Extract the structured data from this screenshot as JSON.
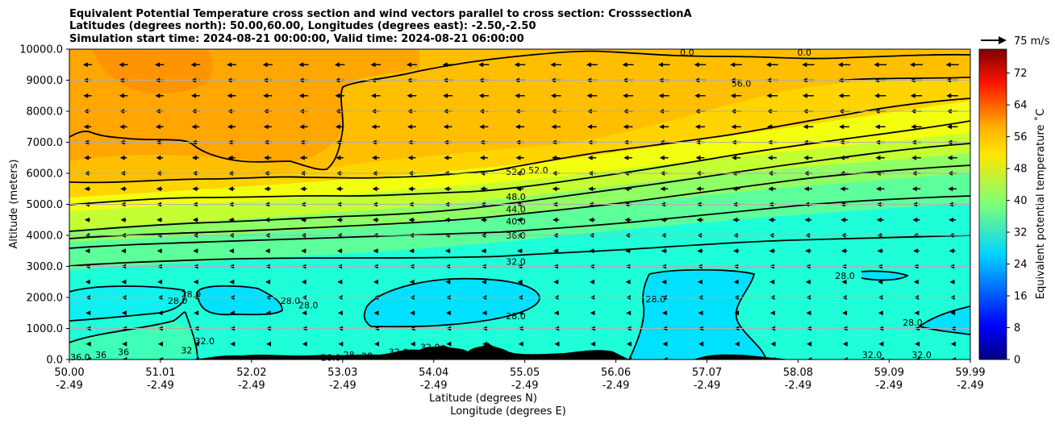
{
  "chart_data": {
    "type": "heatmap",
    "title_lines": [
      "Equivalent Potential Temperature cross section and wind vectors parallel to cross section: CrosssectionA",
      "Latitudes (degrees north): 50.00,60.00, Longitudes (degrees east): -2.50,-2.50",
      "Simulation start time: 2024-08-21 00:00:00, Valid time: 2024-08-21 06:00:00"
    ],
    "xlabel_lines": [
      "Latitude (degrees N)",
      "Longitude (degrees E)"
    ],
    "ylabel": "Altitude (meters)",
    "x_ticks": [
      {
        "lat": "50.00",
        "lon": "-2.49"
      },
      {
        "lat": "51.01",
        "lon": "-2.49"
      },
      {
        "lat": "52.02",
        "lon": "-2.49"
      },
      {
        "lat": "53.03",
        "lon": "-2.49"
      },
      {
        "lat": "54.04",
        "lon": "-2.49"
      },
      {
        "lat": "55.05",
        "lon": "-2.49"
      },
      {
        "lat": "56.06",
        "lon": "-2.49"
      },
      {
        "lat": "57.07",
        "lon": "-2.49"
      },
      {
        "lat": "58.08",
        "lon": "-2.49"
      },
      {
        "lat": "59.09",
        "lon": "-2.49"
      },
      {
        "lat": "59.99",
        "lon": "-2.49"
      }
    ],
    "xlim": [
      50.0,
      59.99
    ],
    "y_ticks": [
      "0.0",
      "1000.0",
      "2000.0",
      "3000.0",
      "4000.0",
      "5000.0",
      "6000.0",
      "7000.0",
      "8000.0",
      "9000.0",
      "10000.0"
    ],
    "ylim": [
      0,
      10000
    ],
    "grid": "horizontal",
    "colorbar": {
      "label": "Equivalent potential temperature ˚C",
      "ticks": [
        "0",
        "8",
        "16",
        "24",
        "32",
        "40",
        "48",
        "56",
        "64",
        "72"
      ],
      "range": [
        0,
        78
      ],
      "colormap": "jet"
    },
    "quiver_key": "75 m/s",
    "wind_direction": "southward (toward 50.00 N)",
    "contour_levels": [
      28,
      32,
      36,
      40,
      44,
      48,
      52,
      56
    ],
    "contour_labels": [
      {
        "text": "52.0",
        "lat": 54.95,
        "alt": 6050
      },
      {
        "text": "52.0",
        "lat": 55.2,
        "alt": 6100
      },
      {
        "text": "48.0",
        "lat": 54.95,
        "alt": 5250
      },
      {
        "text": "44.0",
        "lat": 54.95,
        "alt": 4850
      },
      {
        "text": "40.0",
        "lat": 54.95,
        "alt": 4450
      },
      {
        "text": "36.0",
        "lat": 54.95,
        "alt": 4000
      },
      {
        "text": "32.0",
        "lat": 54.95,
        "alt": 3150
      },
      {
        "text": "28.0",
        "lat": 54.95,
        "alt": 1400
      },
      {
        "text": "56.0",
        "lat": 57.45,
        "alt": 8900
      },
      {
        "text": "28.0",
        "lat": 51.2,
        "alt": 1900
      },
      {
        "text": "28.0",
        "lat": 51.35,
        "alt": 2100
      },
      {
        "text": "28.0",
        "lat": 52.45,
        "alt": 1900
      },
      {
        "text": "28.0",
        "lat": 52.65,
        "alt": 1750
      },
      {
        "text": "32.0",
        "lat": 51.5,
        "alt": 600
      },
      {
        "text": "28.0",
        "lat": 56.5,
        "alt": 1950
      },
      {
        "text": "28.0",
        "lat": 58.6,
        "alt": 2700
      },
      {
        "text": "28.0",
        "lat": 59.35,
        "alt": 1200
      },
      {
        "text": "36.0",
        "lat": 50.12,
        "alt": 80
      },
      {
        "text": "36",
        "lat": 50.35,
        "alt": 150
      },
      {
        "text": "36",
        "lat": 50.6,
        "alt": 250
      },
      {
        "text": "32",
        "lat": 51.3,
        "alt": 300
      },
      {
        "text": "28.0",
        "lat": 52.9,
        "alt": 60
      },
      {
        "text": "28",
        "lat": 53.1,
        "alt": 150
      },
      {
        "text": "28",
        "lat": 53.3,
        "alt": 120
      },
      {
        "text": "32.0",
        "lat": 54.0,
        "alt": 400
      },
      {
        "text": "32.0",
        "lat": 53.65,
        "alt": 250
      },
      {
        "text": "32.0",
        "lat": 58.9,
        "alt": 150
      },
      {
        "text": "32.0",
        "lat": 59.45,
        "alt": 150
      },
      {
        "text": "0.0",
        "lat": 56.85,
        "alt": 9900
      },
      {
        "text": "0.0",
        "lat": 58.15,
        "alt": 9900
      }
    ]
  }
}
